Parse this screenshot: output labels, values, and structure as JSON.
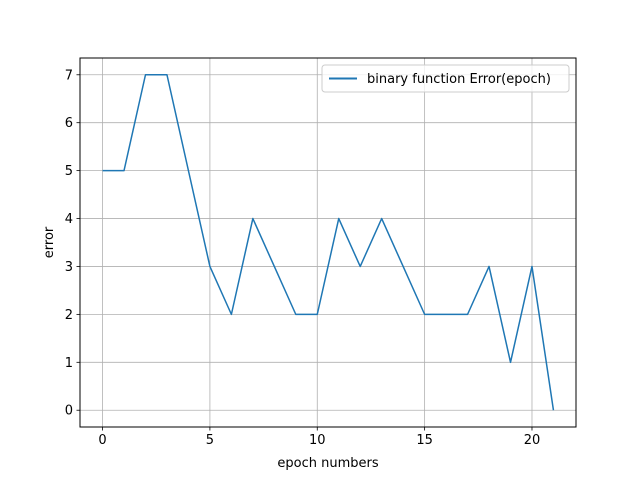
{
  "chart_data": {
    "type": "line",
    "title": "",
    "xlabel": "epoch numbers",
    "ylabel": "error",
    "xlim": [
      -1.05,
      22.05
    ],
    "ylim": [
      -0.35,
      7.35
    ],
    "xticks": [
      0,
      5,
      10,
      15,
      20
    ],
    "yticks": [
      0,
      1,
      2,
      3,
      4,
      5,
      6,
      7
    ],
    "grid": true,
    "legend_position": "top-right",
    "series": [
      {
        "name": "binary function Error(epoch)",
        "color": "#1f77b4",
        "x": [
          0,
          1,
          2,
          3,
          4,
          5,
          6,
          7,
          8,
          9,
          10,
          11,
          12,
          13,
          14,
          15,
          16,
          17,
          18,
          19,
          20,
          21
        ],
        "values": [
          5,
          5,
          7,
          7,
          5,
          3,
          2,
          4,
          3,
          2,
          2,
          4,
          3,
          4,
          3,
          2,
          2,
          2,
          3,
          1,
          3,
          0
        ]
      }
    ]
  }
}
